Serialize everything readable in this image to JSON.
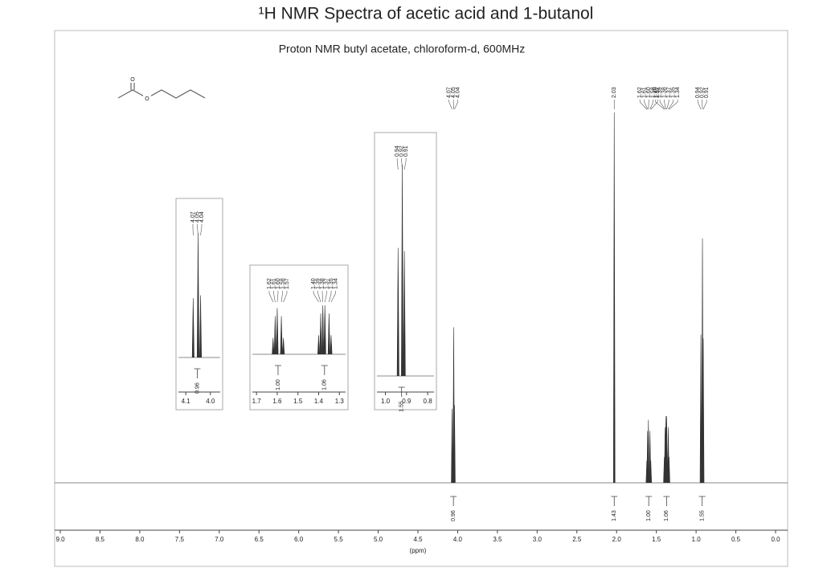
{
  "chart_data": {
    "type": "nmr",
    "title": "¹H NMR Spectra of acetic acid and 1-butanol",
    "subtitle": "Proton NMR butyl acetate, chloroform-d, 600MHz",
    "xlabel": "(ppm)",
    "structure_atoms": [
      "O",
      "O"
    ],
    "xlim": [
      9.0,
      0.0
    ],
    "xticks": [
      {
        "value": 9,
        "label": "9.0"
      },
      8.5,
      {
        "value": 8,
        "label": "8.0"
      },
      7.5,
      {
        "value": 7,
        "label": "7.0"
      },
      6.5,
      {
        "value": 6,
        "label": "6.0"
      },
      5.5,
      {
        "value": 5,
        "label": "5.0"
      },
      4.5,
      {
        "value": 4,
        "label": "4.0"
      },
      3.5,
      {
        "value": 3,
        "label": "3.0"
      },
      2.5,
      {
        "value": 2,
        "label": "2.0"
      },
      1.5,
      {
        "value": 1,
        "label": "1.0"
      },
      0.5,
      {
        "value": 0,
        "label": "0.0"
      }
    ],
    "ylim": [
      0,
      100
    ],
    "multiplets": [
      {
        "lines": [
          {
            "shift": 4.07,
            "height": 20
          },
          {
            "shift": 4.05,
            "height": 42
          },
          {
            "shift": 4.04,
            "height": 21
          }
        ],
        "integral": 0.96
      },
      {
        "lines": [
          {
            "shift": 2.03,
            "height": 100
          }
        ],
        "integral": 1.43
      },
      {
        "lines": [
          {
            "shift": 1.62,
            "height": 6
          },
          {
            "shift": 1.61,
            "height": 14
          },
          {
            "shift": {
              "value": 1.6,
              "label": "1.60"
            },
            "height": 17
          },
          {
            "shift": 1.58,
            "height": 14
          },
          {
            "shift": 1.57,
            "height": 6
          }
        ],
        "integral": {
          "value": 1,
          "label": "1.00"
        }
      },
      {
        "lines": [
          {
            "shift": {
              "value": 1.4,
              "label": "1.40"
            },
            "height": 7
          },
          {
            "shift": 1.39,
            "height": 15
          },
          {
            "shift": 1.38,
            "height": 18
          },
          {
            "shift": 1.37,
            "height": 18
          },
          {
            "shift": 1.35,
            "height": 15
          },
          {
            "shift": 1.34,
            "height": 7
          }
        ],
        "integral": 1.06
      },
      {
        "lines": [
          {
            "shift": 0.94,
            "height": 40
          },
          {
            "shift": 0.92,
            "height": 66
          },
          {
            "shift": 0.91,
            "height": 39
          }
        ],
        "integral": 1.55
      }
    ],
    "insets": [
      {
        "xlim": [
          4.13,
          3.96
        ],
        "xticks": [
          4.1,
          {
            "value": 4,
            "label": "4.0"
          }
        ]
      },
      {
        "xlim": [
          1.72,
          1.27
        ],
        "xticks": [
          1.7,
          1.6,
          1.5,
          1.4,
          1.3
        ]
      },
      {
        "xlim": [
          1.04,
          0.77
        ],
        "xticks": [
          {
            "value": 1,
            "label": "1.0"
          },
          0.9,
          0.8
        ]
      }
    ]
  }
}
